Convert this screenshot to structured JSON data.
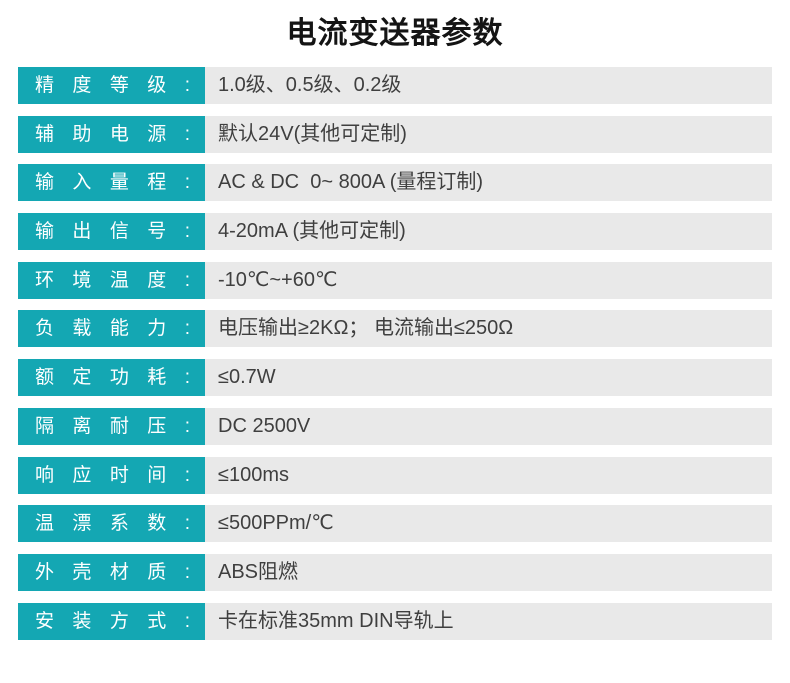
{
  "page": {
    "title": "电流变送器参数",
    "background": "#ffffff"
  },
  "colors": {
    "label_bg": "#14A7B3",
    "label_text": "#ffffff",
    "value_bg": "#E9E9E9",
    "value_text": "#3F3F3F",
    "title_text": "#141414",
    "page_bg": "#ffffff"
  },
  "table": {
    "rows": [
      {
        "label": "精 度 等 级 :",
        "value": "1.0级、0.5级、0.2级"
      },
      {
        "label": "辅 助 电 源 :",
        "value": "默认24V(其他可定制)"
      },
      {
        "label": "输 入 量 程 :",
        "value": "AC & DC  0~ 800A (量程订制)"
      },
      {
        "label": "输 出 信 号 :",
        "value": "4-20mA (其他可定制)"
      },
      {
        "label": "环 境 温 度 :",
        "value": "-10℃~+60℃"
      },
      {
        "label": "负 载 能 力 :",
        "value": "电压输出≥2KΩ； 电流输出≤250Ω"
      },
      {
        "label": "额 定 功 耗 :",
        "value": "≤0.7W"
      },
      {
        "label": "隔 离 耐 压 :",
        "value": "DC 2500V"
      },
      {
        "label": "响 应 时 间 :",
        "value": "≤100ms"
      },
      {
        "label": "温 漂 系 数 :",
        "value": "≤500PPm/℃"
      },
      {
        "label": "外 壳 材 质 :",
        "value": "ABS阻燃"
      },
      {
        "label": "安 装 方 式 :",
        "value": "卡在标准35mm DIN导轨上"
      }
    ]
  }
}
